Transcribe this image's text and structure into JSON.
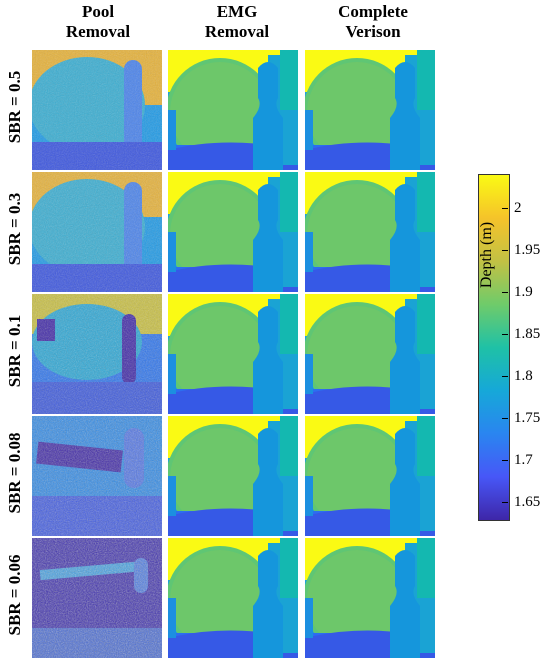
{
  "columns": [
    {
      "line1": "Pool",
      "line2": "Removal"
    },
    {
      "line1": "EMG",
      "line2": "Removal"
    },
    {
      "line1": "Complete",
      "line2": "Verison"
    }
  ],
  "rows": [
    {
      "label": "SBR = 0.5"
    },
    {
      "label": "SBR = 0.3"
    },
    {
      "label": "SBR = 0.1"
    },
    {
      "label": "SBR = 0.08"
    },
    {
      "label": "SBR = 0.06"
    }
  ],
  "colorbar": {
    "label": "Depth (m)",
    "ticks": [
      "2",
      "1.95",
      "1.9",
      "1.85",
      "1.8",
      "1.75",
      "1.7",
      "1.65"
    ],
    "tick_values": [
      2.0,
      1.95,
      1.9,
      1.85,
      1.8,
      1.75,
      1.7,
      1.65
    ],
    "range": [
      1.63,
      2.04
    ],
    "colors": [
      "#3e26a8",
      "#4757f7",
      "#2a85f0",
      "#16a8d8",
      "#1fc1a6",
      "#6fcb6a",
      "#c2c144",
      "#f5c32a",
      "#fafa14"
    ]
  }
}
